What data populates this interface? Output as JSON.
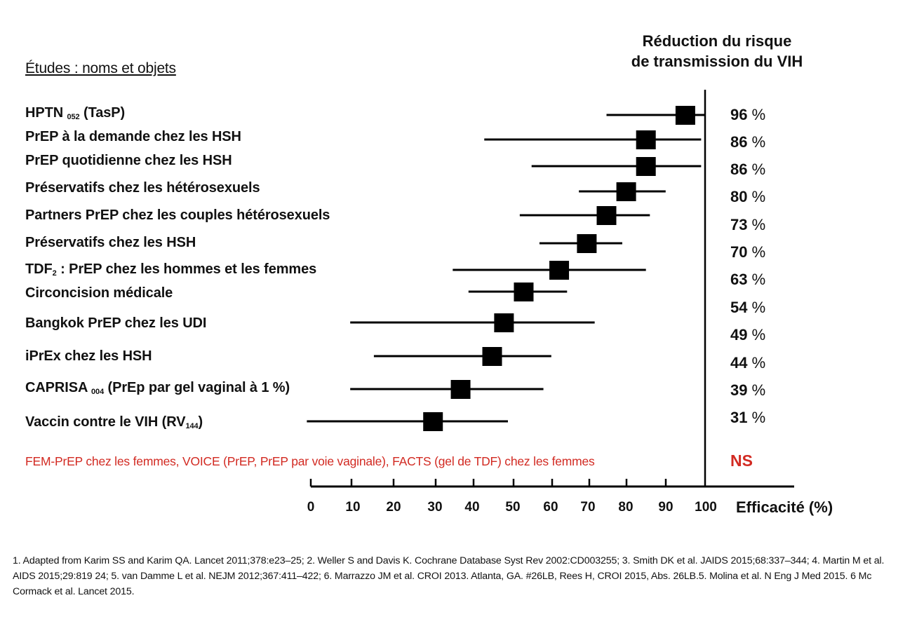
{
  "chart_data": {
    "type": "forest",
    "title": "Réduction du risque de transmission du VIH",
    "title_lines": [
      "Réduction du risque",
      "de transmission du VIH"
    ],
    "ylabel": "Études : noms et objets",
    "xlabel": "Efficacité (%)",
    "xlim": [
      0,
      100
    ],
    "x_ticks": [
      "0",
      "10",
      "20",
      "30",
      "40",
      "50",
      "60",
      "70",
      "80",
      "90",
      "100"
    ],
    "grid": false,
    "studies": [
      {
        "name": "HPTN",
        "sub": "052",
        "suffix": " (TasP)",
        "estimate": 96,
        "label": "96",
        "marker": 95,
        "ci": [
          75,
          100
        ]
      },
      {
        "name": "PrEP à la demande chez les HSH",
        "sub": "",
        "suffix": "",
        "estimate": 86,
        "label": "86",
        "marker": 85,
        "ci": [
          44,
          99
        ]
      },
      {
        "name": "PrEP quotidienne chez les HSH",
        "sub": "",
        "suffix": "",
        "estimate": 86,
        "label": "86",
        "marker": 85,
        "ci": [
          56,
          99
        ]
      },
      {
        "name": "Préservatifs chez les hétérosexuels",
        "sub": "",
        "suffix": "",
        "estimate": 80,
        "label": "80",
        "marker": 80,
        "ci": [
          68,
          90
        ]
      },
      {
        "name": "Partners PrEP chez les couples hétérosexuels",
        "sub": "",
        "suffix": "",
        "estimate": 73,
        "label": "73",
        "marker": 75,
        "ci": [
          53,
          86
        ]
      },
      {
        "name": "Préservatifs chez les HSH",
        "sub": "",
        "suffix": "",
        "estimate": 70,
        "label": "70",
        "marker": 70,
        "ci": [
          58,
          79
        ]
      },
      {
        "name": "TDF",
        "sub": "2",
        "suffix": " : PrEP chez les hommes et les femmes",
        "estimate": 63,
        "label": "63",
        "marker": 63,
        "ci": [
          36,
          85
        ]
      },
      {
        "name": "Circoncision médicale",
        "sub": "",
        "suffix": "",
        "estimate": 54,
        "label": "54",
        "marker": 54,
        "ci": [
          40,
          65
        ]
      },
      {
        "name": "Bangkok PrEP chez les UDI",
        "sub": "",
        "suffix": "",
        "estimate": 49,
        "label": "49",
        "marker": 49,
        "ci": [
          10,
          72
        ]
      },
      {
        "name": "iPrEx chez les HSH",
        "sub": "",
        "suffix": "",
        "estimate": 44,
        "label": "44",
        "marker": 46,
        "ci": [
          16,
          61
        ]
      },
      {
        "name": "CAPRISA",
        "sub": "004",
        "suffix": " (PrEp par gel vaginal à 1 %)",
        "estimate": 39,
        "label": "39",
        "marker": 38,
        "ci": [
          10,
          59
        ]
      },
      {
        "name": "Vaccin contre le VIH (RV",
        "sub": "144",
        "suffix": ")",
        "estimate": 31,
        "label": "31",
        "marker": 31,
        "ci": [
          -1,
          50
        ]
      }
    ],
    "pct_symbol": "%",
    "non_significant": {
      "text": "FEM-PrEP chez les femmes, VOICE (PrEP, PrEP par voie vaginale), FACTS (gel de TDF) chez les femmes",
      "label": "NS"
    },
    "colors": {
      "marks": "#000000",
      "ns": "#d22a22"
    }
  },
  "references": "1. Adapted from Karim SS and Karim QA. Lancet 2011;378:e23–25; 2. Weller S and Davis K. Cochrane Database Syst Rev 2002:CD003255; 3. Smith DK et al. JAIDS 2015;68:337–344; 4. Martin M et al. AIDS 2015;29:819 24; 5. van Damme L et al. NEJM 2012;367:411–422; 6. Marrazzo JM et al. CROI 2013. Atlanta, GA. #26LB, Rees H, CROI 2015, Abs. 26LB.5. Molina et al. N Eng J Med 2015. 6 Mc Cormack et al. Lancet 2015."
}
